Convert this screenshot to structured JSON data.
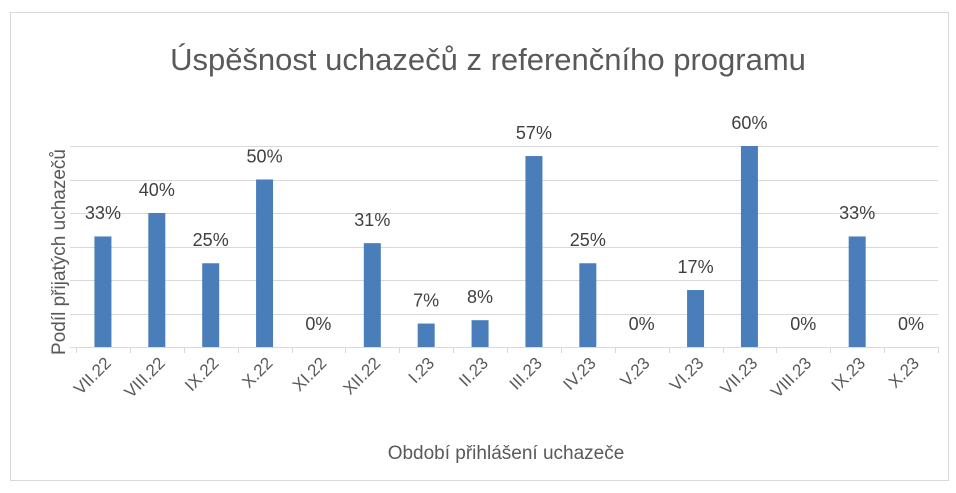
{
  "chart_data": {
    "type": "bar",
    "title": "Úspěšnost uchazečů z referenčního programu",
    "categories": [
      "VII.22",
      "VIII.22",
      "IX.22",
      "X.22",
      "XI.22",
      "XII.22",
      "I.23",
      "II.23",
      "III.23",
      "IV.23",
      "V.23",
      "VI.23",
      "VII.23",
      "VIII.23",
      "IX.23",
      "X.23"
    ],
    "values": [
      33,
      40,
      25,
      50,
      0,
      31,
      7,
      8,
      57,
      25,
      0,
      17,
      60,
      0,
      33,
      0
    ],
    "value_labels": [
      "33%",
      "40%",
      "25%",
      "50%",
      "0%",
      "31%",
      "7%",
      "8%",
      "57%",
      "25%",
      "0%",
      "17%",
      "60%",
      "0%",
      "33%",
      "0%"
    ],
    "color": "#4a7ebb",
    "x_label": "Období přihlášení uchazeče",
    "y_label": "Podíl přijatých uchazečů",
    "ylim": [
      0,
      60
    ],
    "yticks": [
      0,
      10,
      20,
      30,
      40,
      50,
      60
    ],
    "grid": true
  }
}
